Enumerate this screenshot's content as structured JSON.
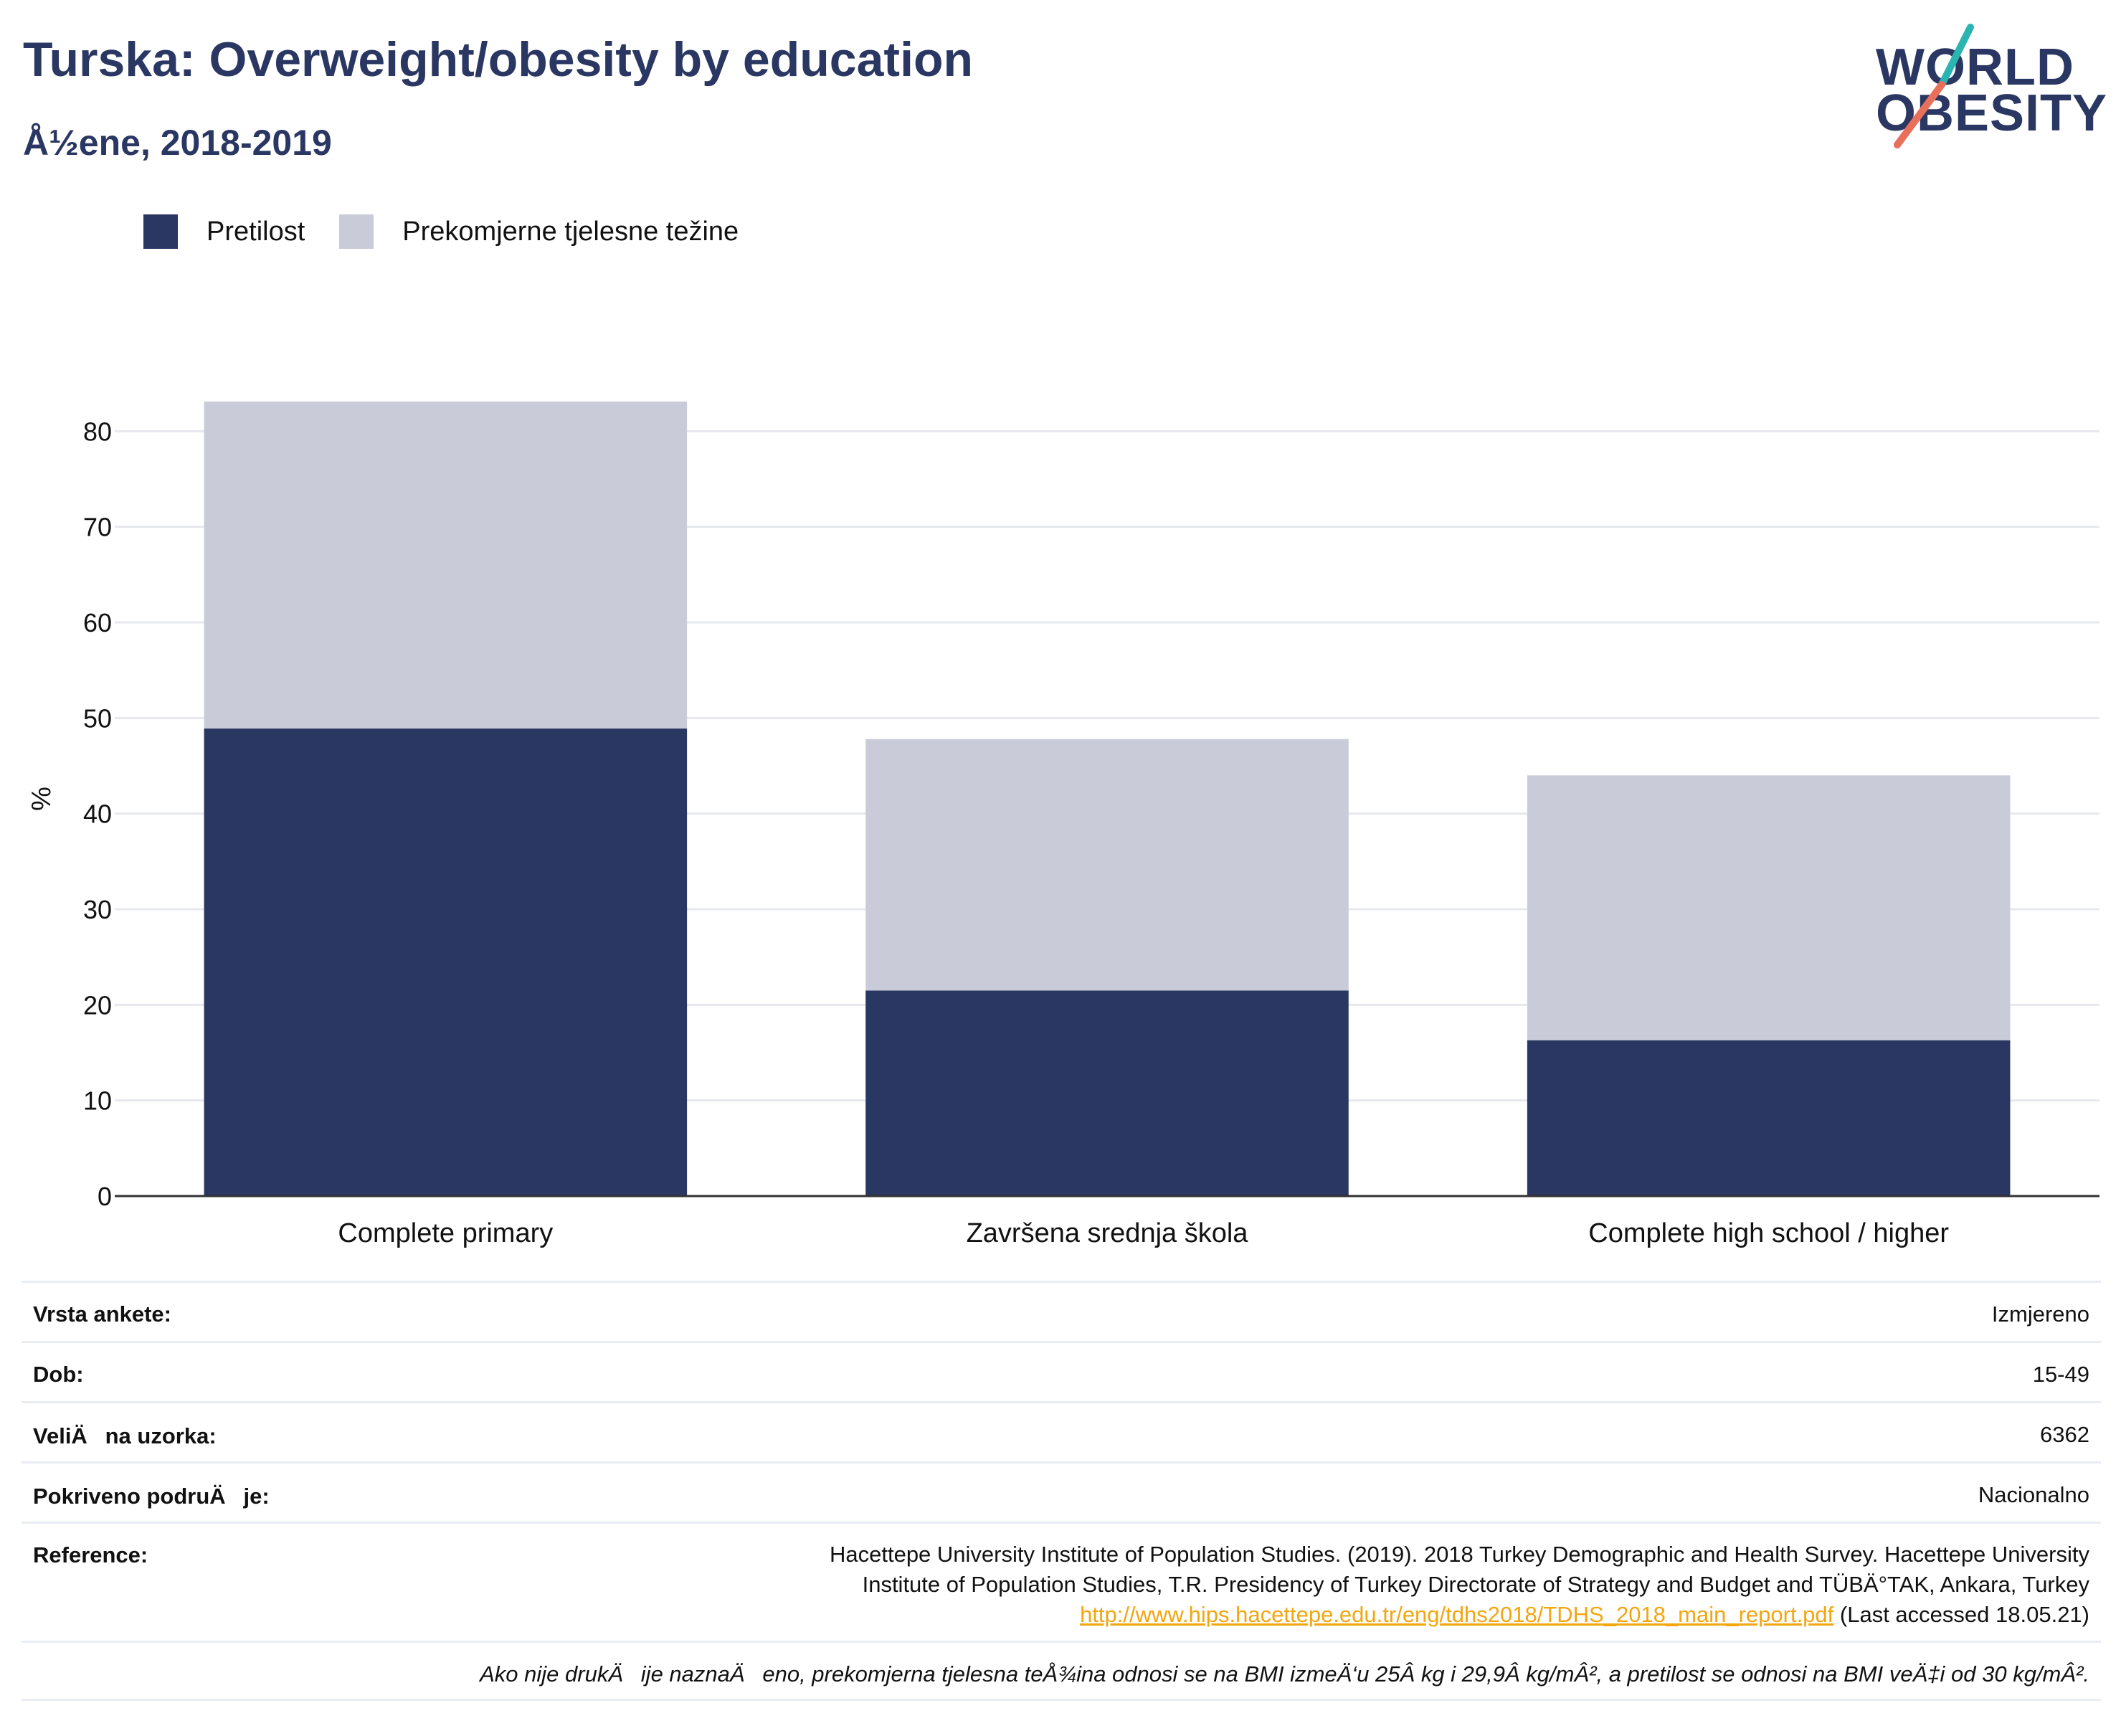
{
  "header": {
    "title": "Turska: Overweight/obesity by education",
    "subtitle": "Å½ene, 2018-2019"
  },
  "logo": {
    "line1": "WORLD",
    "line2": "OBESITY",
    "accent_teal": "#2bb5b0",
    "accent_coral": "#e8705a"
  },
  "colors": {
    "navy": "#2a3762",
    "light": "#c9ccd8",
    "text": "#111111",
    "link": "#f2a60f"
  },
  "chart_data": {
    "type": "bar",
    "stacked": true,
    "categories": [
      "Complete primary",
      "Završena srednja škola",
      "Complete high school / higher"
    ],
    "series": [
      {
        "name": "Pretilost",
        "color": "#2a3762",
        "values": [
          48.9,
          21.5,
          16.3
        ]
      },
      {
        "name": "Prekomjerne tjelesne težine",
        "color": "#c9ccd8",
        "values": [
          34.2,
          26.3,
          27.7
        ]
      }
    ],
    "ylabel": "%",
    "ylim": [
      0,
      83.1
    ],
    "yticks": [
      0,
      10,
      20,
      30,
      40,
      50,
      60,
      70,
      80
    ],
    "grid": true,
    "legend": "top-left"
  },
  "info": {
    "rows": [
      {
        "label": "Vrsta ankete:",
        "value": "Izmjereno"
      },
      {
        "label": "Dob:",
        "value": "15-49"
      },
      {
        "label": "VeliÄna uzorka:",
        "value": "6362"
      },
      {
        "label": "Pokriveno podruÄje:",
        "value": "Nacionalno"
      }
    ],
    "reference": {
      "label": "Reference:",
      "line1": "Hacettepe University Institute of Population Studies. (2019). 2018 Turkey Demographic and Health Survey. Hacettepe University",
      "line2": "Institute of Population Studies, T.R. Presidency of Turkey Directorate of Strategy and Budget and TÜBÄ°TAK, Ankara, Turkey",
      "link": "http://www.hips.hacettepe.edu.tr/eng/tdhs2018/TDHS_2018_main_report.pdf",
      "accessed": " (Last accessed 18.05.21)"
    },
    "footnote": "Ako nije drukÄije naznaÄeno, prekomjerna tjelesna teÅ¾ina odnosi se na BMI izmeÄ‘u 25Â kg i 29,9Â kg/mÂ², a pretilost se odnosi na BMI veÄ‡i od 30 kg/mÂ²."
  }
}
